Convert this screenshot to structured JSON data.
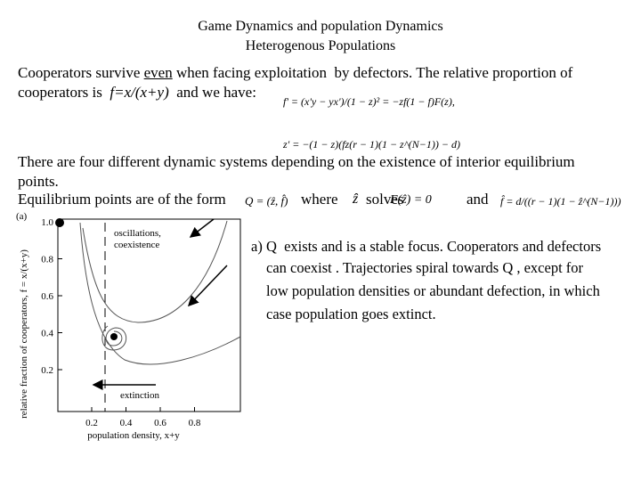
{
  "header": {
    "title": "Game Dynamics and population Dynamics",
    "subtitle": "Heterogenous Populations"
  },
  "intro": {
    "line1": [
      "Cooperators survive ",
      "even",
      " when facing exploitation  by defectors. The relative proportion of"
    ],
    "line2": [
      "cooperators is  ",
      "f=x/(x+y)",
      "  and we have:"
    ]
  },
  "equations": [
    "f' = (x'y − yx')/(1 − z)² = −zf(1 − f)F(z),",
    "z' = −(1 − z)(fz(r − 1)(1 − z^(N−1)) − d)"
  ],
  "systems": {
    "line1": "There are four different dynamic systems depending on the existence of interior equilibrium",
    "line2": "points."
  },
  "equilibrium": [
    "Equilibrium points are of the form",
    "Q = (ẑ, f̂)",
    "where",
    "ẑ",
    "solves",
    "F(ẑ) = 0",
    "and",
    "f̂ = d/((r − 1)(1 − ẑ^(N−1)))"
  ],
  "figure": {
    "panel": "(a)",
    "y_label": "relative fraction of cooperators, f = x/(x+y)",
    "x_label": "population density, x+y",
    "yticks": [
      "0.2",
      "0.4",
      "0.6",
      "0.8",
      "1.0"
    ],
    "xticks": [
      "0.2",
      "0.4",
      "0.6",
      "0.8"
    ],
    "annotations": [
      "oscillations,",
      "coexistence",
      "extinction"
    ]
  },
  "caption": [
    "a) Q  exists and is a stable focus. Cooperators and defectors",
    "can coexist . Trajectories spiral towards Q , except for",
    "low population densities or abundant defection, in which",
    "case population goes extinct."
  ]
}
